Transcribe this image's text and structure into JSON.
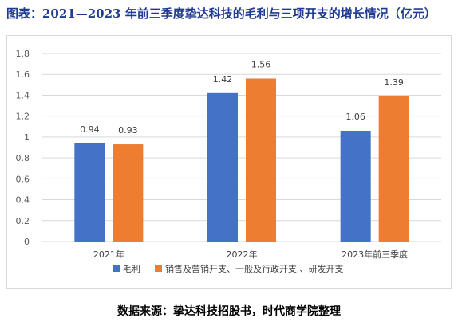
{
  "title": "图表：2021—2023 年前三季度挚达科技的毛利与三项开支的增长情况（亿元）",
  "source": "数据来源：挚达科技招股书，时代商学院整理",
  "colors": {
    "gross_profit": "#4472c4",
    "expenses": "#ed7d31",
    "grid": "#d9d9d9",
    "axis_text": "#595959"
  },
  "chart_data": {
    "type": "bar",
    "categories": [
      "2021年",
      "2022年",
      "2023年前三季度"
    ],
    "series": [
      {
        "name": "毛利",
        "values": [
          0.94,
          1.42,
          1.06
        ],
        "labels": [
          "0.94",
          "1.42",
          "1.06"
        ]
      },
      {
        "name": "销售及营销开支、一般及行政开支 、研发开支",
        "values": [
          0.93,
          1.56,
          1.39
        ],
        "labels": [
          "0.93",
          "1.56",
          "1.39"
        ]
      }
    ],
    "yticks": [
      "0",
      "0.2",
      "0.4",
      "0.6",
      "0.8",
      "1",
      "1.2",
      "1.4",
      "1.6",
      "1.8"
    ],
    "ylim": [
      0,
      1.8
    ],
    "grid": true,
    "legend_position": "bottom"
  }
}
